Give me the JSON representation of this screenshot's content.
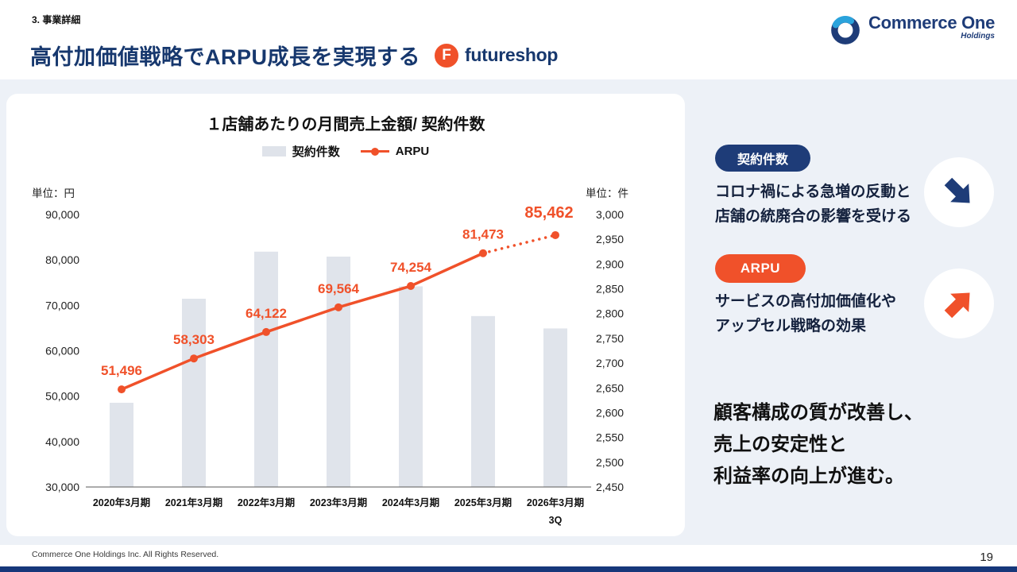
{
  "header": {
    "section_label": "3. 事業詳細",
    "title": "高付加価値戦略でARPU成長を実現する"
  },
  "logos": {
    "futureshop": {
      "icon_letter": "F",
      "text": "futureshop"
    },
    "commerce_one": {
      "text": "Commerce One",
      "sub": "Holdings"
    }
  },
  "chart_data": {
    "type": "bar+line",
    "title": "１店舗あたりの月間売上金額/ 契約件数",
    "legend": [
      {
        "label": "契約件数",
        "type": "bar",
        "color": "#dfe3ea"
      },
      {
        "label": "ARPU",
        "type": "line",
        "color": "#f0512a"
      }
    ],
    "left_axis": {
      "unit": "単位：円",
      "min": 30000,
      "max": 90000,
      "ticks": [
        "90,000",
        "80,000",
        "70,000",
        "60,000",
        "50,000",
        "40,000",
        "30,000"
      ]
    },
    "right_axis": {
      "unit": "単位：件",
      "min": 2450,
      "max": 3000,
      "ticks": [
        "3,000",
        "2,950",
        "2,900",
        "2,850",
        "2,800",
        "2,750",
        "2,700",
        "2,650",
        "2,600",
        "2,550",
        "2,500",
        "2,450"
      ]
    },
    "categories": [
      "2020年3月期",
      "2021年3月期",
      "2022年3月期",
      "2023年3月期",
      "2024年3月期",
      "2025年3月期",
      "2026年3月期"
    ],
    "last_category_line2": "3Q",
    "series": [
      {
        "name": "契約件数",
        "type": "bar",
        "axis": "right",
        "color": "#e0e4eb",
        "estimated": true,
        "values": [
          2620,
          2830,
          2925,
          2915,
          2855,
          2795,
          2770
        ]
      },
      {
        "name": "ARPU",
        "type": "line",
        "axis": "left",
        "color": "#f0512a",
        "dotted_last_segment": true,
        "values": [
          51496,
          58303,
          64122,
          69564,
          74254,
          81473,
          85462
        ],
        "labels": [
          "51,496",
          "58,303",
          "64,122",
          "69,564",
          "74,254",
          "81,473",
          "85,462"
        ]
      }
    ]
  },
  "sidebar": {
    "keiyaku": {
      "badge": "契約件数",
      "lines": [
        "コロナ禍による急増の反動と",
        "店舗の統廃合の影響を受ける"
      ],
      "arrow": "down-right"
    },
    "arpu": {
      "badge": "ARPU",
      "lines": [
        "サービスの高付加価値化や",
        "アップセル戦略の効果"
      ],
      "arrow": "up-right"
    },
    "statement_lines": [
      "顧客構成の質が改善し、",
      "売上の安定性と",
      "利益率の向上が進む。"
    ]
  },
  "footer": {
    "copyright": "Commerce One Holdings Inc. All Rights Reserved.",
    "page_number": "19"
  },
  "colors": {
    "navy": "#1e3c78",
    "orange": "#f0512a",
    "bar": "#e0e4eb",
    "panel_bg": "#edf1f7",
    "title_navy": "#17386e"
  }
}
